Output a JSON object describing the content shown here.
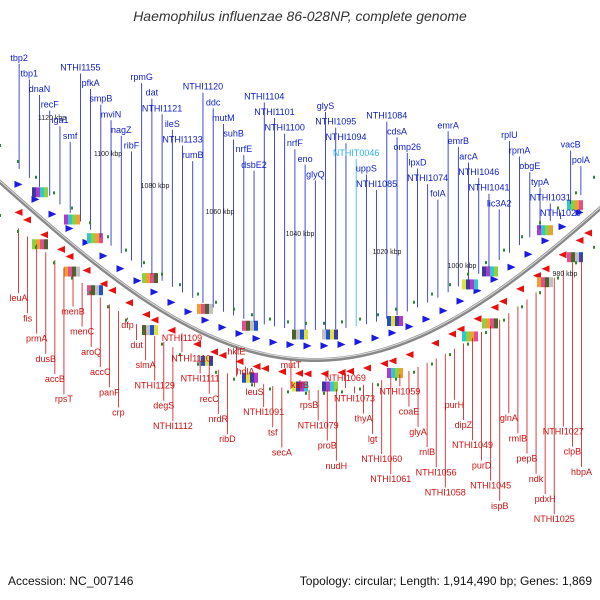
{
  "title": "Haemophilus influenzae 86-028NP, complete genome",
  "footer": {
    "accession": "Accession: NC_007146",
    "summary": "Topology: circular; Length: 1,914,490 bp; Genes: 1,869"
  },
  "colors": {
    "forward_label": "#1020c8",
    "reverse_label": "#d01010",
    "highlight_label": "#30b0e8",
    "forward_gene": "#1a1ae0",
    "reverse_gene": "#e81010",
    "backbone": "#888888",
    "tick": "#2a8a2a"
  },
  "kbp_ticks": [
    "1120 kbp",
    "1100 kbp",
    "1080 kbp",
    "1060 kbp",
    "1040 kbp",
    "1020 kbp",
    "1000 kbp",
    "980 kbp"
  ],
  "forward_labels": [
    "tbp2",
    "tbp1",
    "dnaN",
    "recF",
    "iga1",
    "smf",
    "NTHI1155",
    "pfkA",
    "smpB",
    "mviN",
    "nagZ",
    "ribF",
    "rpmG",
    "dat",
    "NTHI1121",
    "ileS",
    "NTHI1133",
    "rumB",
    "NTHI1120",
    "ddc",
    "mutM",
    "suhB",
    "nrfE",
    "dsbE2",
    "NTHI1104",
    "NTHI1101",
    "NTHI1100",
    "nrfF",
    "eno",
    "glyQ",
    "glyS",
    "NTHI1095",
    "NTHI1094",
    "NTHIT0046",
    "uppS",
    "NTHI1085",
    "NTHI1084",
    "cdsA",
    "omp26",
    "lpxD",
    "NTHI1074",
    "folA",
    "emrA",
    "emrB",
    "arcA",
    "NTHI1046",
    "NTHI1041",
    "lic3A2",
    "rplU",
    "rpmA",
    "obgE",
    "typA",
    "NTHI1031",
    "NTHI1029",
    "vacB",
    "polA"
  ],
  "reverse_labels": [
    "leuA",
    "fis",
    "prmA",
    "dusB",
    "accB",
    "rpsT",
    "menB",
    "menC",
    "aroQ",
    "accC",
    "panF",
    "crp",
    "dfp",
    "dut",
    "slmA",
    "NTHI1129",
    "degS",
    "NTHI1112",
    "NTHI1109",
    "NTHI1110",
    "NTHI1111",
    "recC",
    "nrdR",
    "ribD",
    "hktE",
    "holA",
    "leuS",
    "NTHI1091",
    "tsf",
    "secA",
    "mutT",
    "kefB",
    "rpsB",
    "NTHI1079",
    "proB",
    "nudH",
    "NTHI1069",
    "NTHI1073",
    "thyA",
    "lgt",
    "NTHI1060",
    "NTHI1061",
    "NTHI1059",
    "coaE",
    "glyA",
    "rnlB",
    "NTHI1056",
    "NTHI1058",
    "purH",
    "dipZ",
    "NTHI1049",
    "purD",
    "NTHI1045",
    "ispB",
    "glnA",
    "rmlB",
    "pepB",
    "ndk",
    "pdxH",
    "NTHI1025",
    "NTHI1027",
    "clpB",
    "hbpA"
  ]
}
